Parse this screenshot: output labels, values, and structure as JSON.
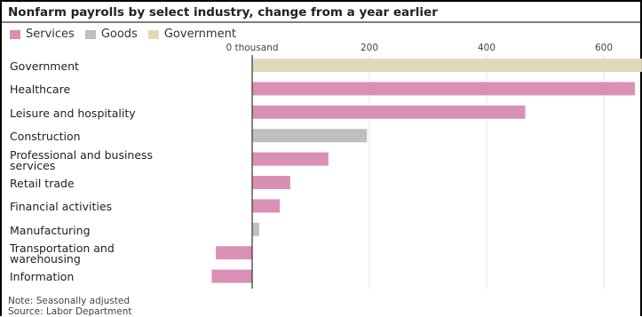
{
  "title": "Nonfarm payrolls by select industry, change from a year earlier",
  "legend": [
    {
      "name": "Services",
      "color": "#da8fb5"
    },
    {
      "name": "Goods",
      "color": "#bfbfbf"
    },
    {
      "name": "Government",
      "color": "#e2d9bc"
    }
  ],
  "notes": {
    "note": "Note: Seasonally adjusted",
    "source": "Source: Labor Department"
  },
  "chart_data": {
    "type": "bar",
    "orientation": "horizontal",
    "title": "Nonfarm payrolls by select industry, change from a year earlier",
    "unit_label": "thousand",
    "ticks": [
      0,
      200,
      400,
      600
    ],
    "tick_labels": [
      "0 thousand",
      "200",
      "400",
      "600"
    ],
    "xlim": [
      -70,
      665
    ],
    "grid": true,
    "legend_position": "top-left",
    "categories": [
      {
        "label": "Government",
        "value": 665,
        "group": "Government"
      },
      {
        "label": "Healthcare",
        "value": 653,
        "group": "Services"
      },
      {
        "label": "Leisure and hospitality",
        "value": 466,
        "group": "Services"
      },
      {
        "label": "Construction",
        "value": 196,
        "group": "Goods"
      },
      {
        "label": "Professional and business services",
        "value": 130,
        "group": "Services"
      },
      {
        "label": "Retail trade",
        "value": 65,
        "group": "Services"
      },
      {
        "label": "Financial activities",
        "value": 47,
        "group": "Services"
      },
      {
        "label": "Manufacturing",
        "value": 12,
        "group": "Goods"
      },
      {
        "label": "Transportation and warehousing",
        "value": -62,
        "group": "Services"
      },
      {
        "label": "Information",
        "value": -69,
        "group": "Services"
      }
    ]
  }
}
